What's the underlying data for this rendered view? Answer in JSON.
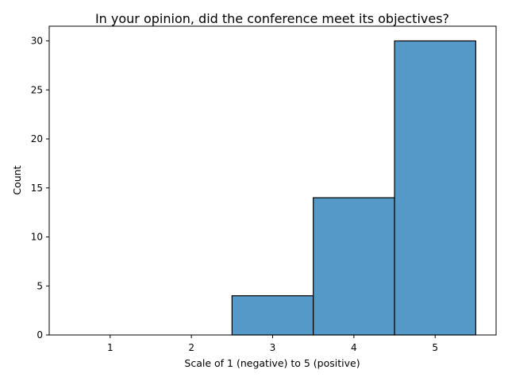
{
  "chart_data": {
    "type": "bar",
    "title": "In your opinion, did the conference meet its objectives?",
    "xlabel": "Scale of 1 (negative) to 5 (positive)",
    "ylabel": "Count",
    "categories": [
      "1",
      "2",
      "3",
      "4",
      "5"
    ],
    "values": [
      0,
      0,
      4,
      14,
      30
    ],
    "ylim": [
      0,
      31.5
    ],
    "yticks": [
      0,
      5,
      10,
      15,
      20,
      25,
      30
    ],
    "xlim": [
      0.25,
      5.75
    ],
    "grid": false,
    "bar_color": "#5499c7"
  }
}
